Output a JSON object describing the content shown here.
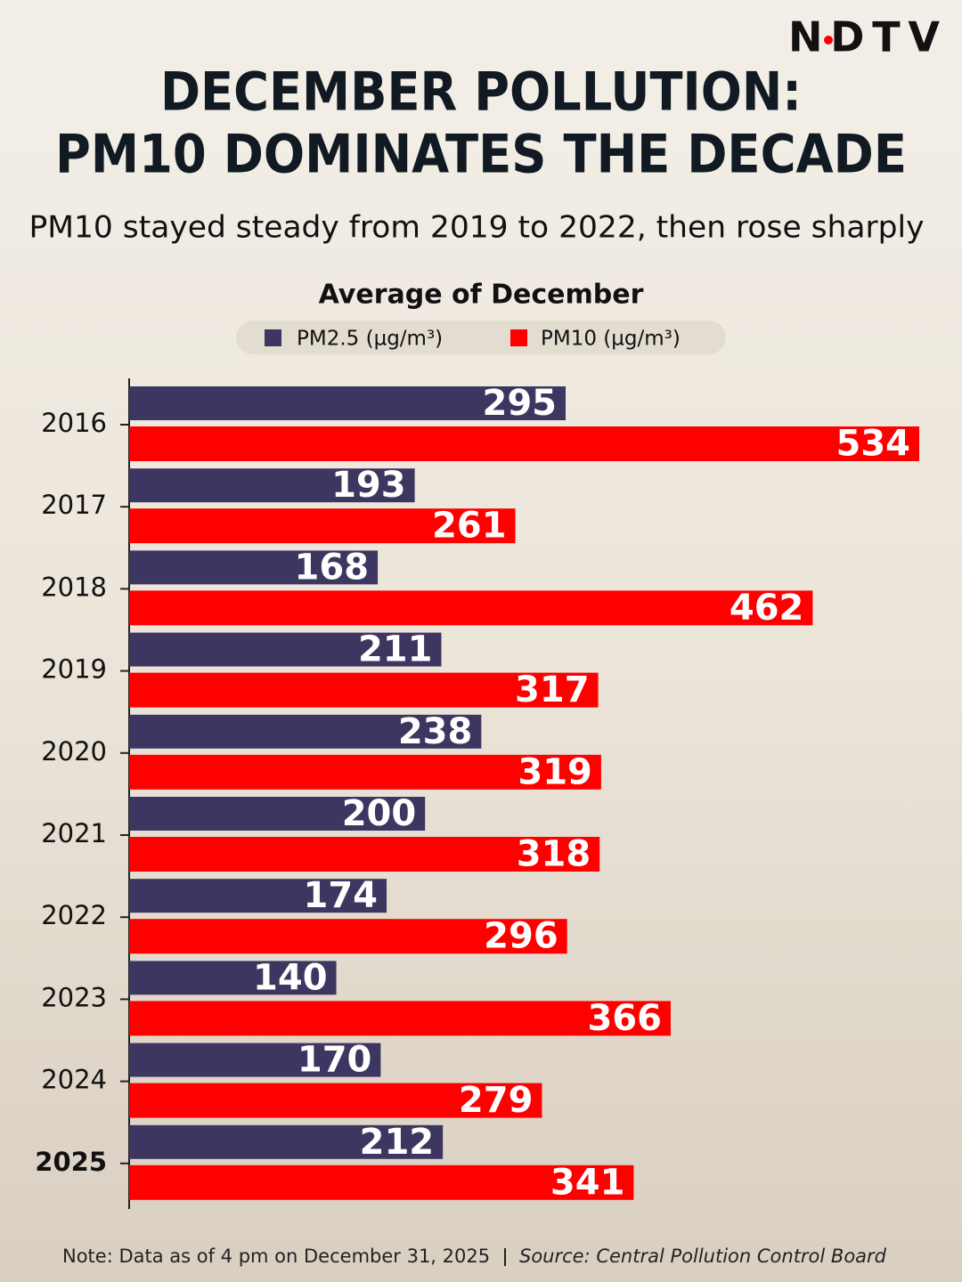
{
  "brand": "NDTV",
  "chart_data": {
    "type": "bar",
    "orientation": "horizontal",
    "title": [
      "DECEMBER POLLUTION:",
      "PM10 DOMINATES THE DECADE"
    ],
    "subtitle": "PM10 stayed steady from 2019 to 2022, then rose sharply",
    "chart_title": "Average of December",
    "categories": [
      "2016",
      "2017",
      "2018",
      "2019",
      "2020",
      "2021",
      "2022",
      "2023",
      "2024",
      "2025"
    ],
    "series": [
      {
        "name": "PM2.5 (µg/m³)",
        "color": "#3d3660",
        "values": [
          295,
          193,
          168,
          211,
          238,
          200,
          174,
          140,
          170,
          212
        ]
      },
      {
        "name": "PM10 (µg/m³)",
        "color": "#ff0000",
        "values": [
          534,
          261,
          462,
          317,
          319,
          318,
          296,
          366,
          279,
          341
        ]
      }
    ],
    "note": "Note: Data as of 4 pm on December 31, 2025",
    "source": "Source: Central Pollution Control Board"
  }
}
